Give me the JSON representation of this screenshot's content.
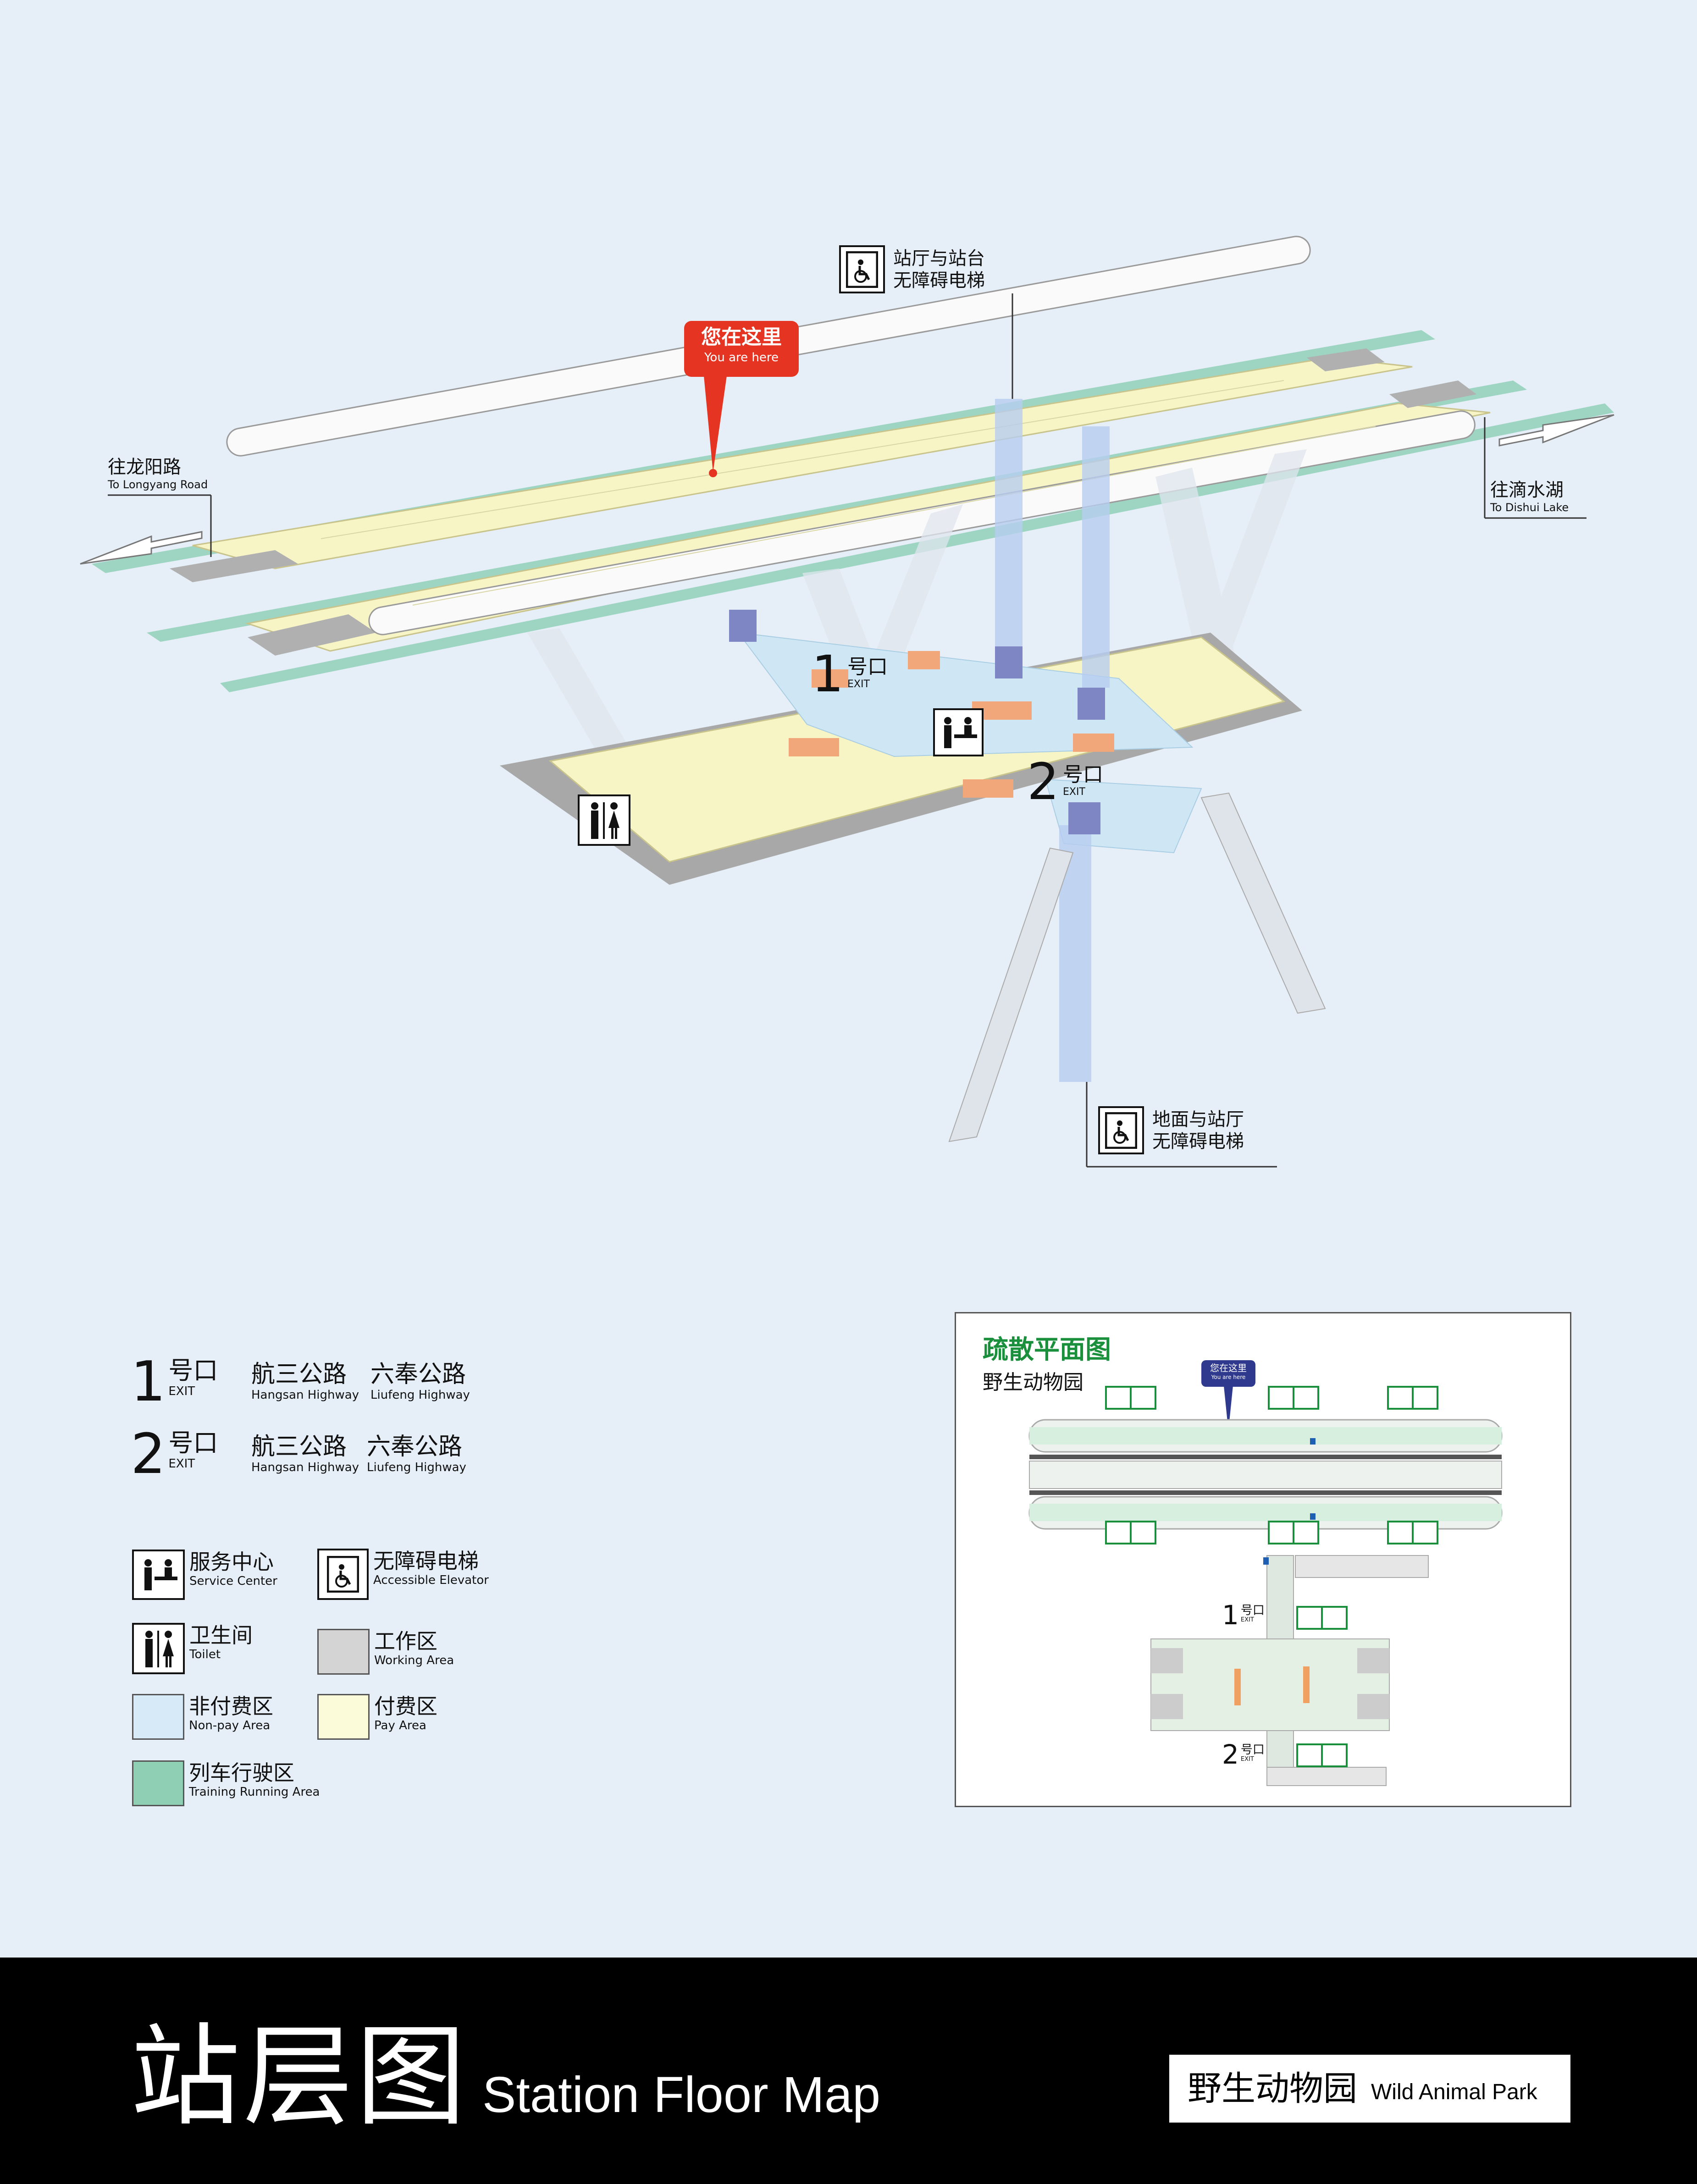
{
  "map": {
    "you_are_here": {
      "zh": "您在这里",
      "en": "You are here"
    },
    "direction_west": {
      "zh": "往龙阳路",
      "en": "To Longyang Road"
    },
    "direction_east": {
      "zh": "往滴水湖",
      "en": "To Dishui Lake"
    },
    "elevator_top": {
      "line1": "站厅与站台",
      "line2": "无障碍电梯"
    },
    "elevator_bottom": {
      "line1": "地面与站厅",
      "line2": "无障碍电梯"
    },
    "exit1": {
      "num": "1",
      "zh": "号口",
      "en": "EXIT"
    },
    "exit2": {
      "num": "2",
      "zh": "号口",
      "en": "EXIT"
    }
  },
  "legend": {
    "exits": [
      {
        "num": "1",
        "zh": "号口",
        "en": "EXIT",
        "roads": [
          {
            "zh": "航三公路",
            "en": "Hangsan Highway"
          },
          {
            "zh": "六奉公路",
            "en": "Liufeng Highway"
          }
        ]
      },
      {
        "num": "2",
        "zh": "号口",
        "en": "EXIT",
        "roads": [
          {
            "zh": "航三公路",
            "en": "Hangsan Highway"
          },
          {
            "zh": "六奉公路",
            "en": "Liufeng Highway"
          }
        ]
      }
    ],
    "service_center": {
      "zh": "服务中心",
      "en": "Service Center",
      "icon": "service-center-icon"
    },
    "accessible_elevator": {
      "zh": "无障碍电梯",
      "en": "Accessible Elevator",
      "icon": "accessible-elevator-icon"
    },
    "toilet": {
      "zh": "卫生间",
      "en": "Toilet",
      "icon": "toilet-icon"
    },
    "working_area": {
      "zh": "工作区",
      "en": "Working Area",
      "color": "#d4d4d4"
    },
    "non_pay_area": {
      "zh": "非付费区",
      "en": "Non-pay Area",
      "color": "#d6ebf7"
    },
    "pay_area": {
      "zh": "付费区",
      "en": "Pay Area",
      "color": "#fcfbd9"
    },
    "running_area": {
      "zh": "列车行驶区",
      "en": "Training Running Area",
      "color": "#8fcfb3"
    }
  },
  "evacuation": {
    "title": "疏散平面图",
    "station": "野生动物园",
    "you_are_here": {
      "zh": "您在这里",
      "en": "You are here"
    },
    "exit1": {
      "num": "1",
      "zh": "号口",
      "en": "EXIT"
    },
    "exit2": {
      "num": "2",
      "zh": "号口",
      "en": "EXIT"
    },
    "title_color": "#1a8f3c",
    "marker_color": "#2f3a8f"
  },
  "footer": {
    "title_zh": "站层图",
    "title_en": "Station Floor Map",
    "station_zh": "野生动物园",
    "station_en": "Wild Animal Park"
  }
}
